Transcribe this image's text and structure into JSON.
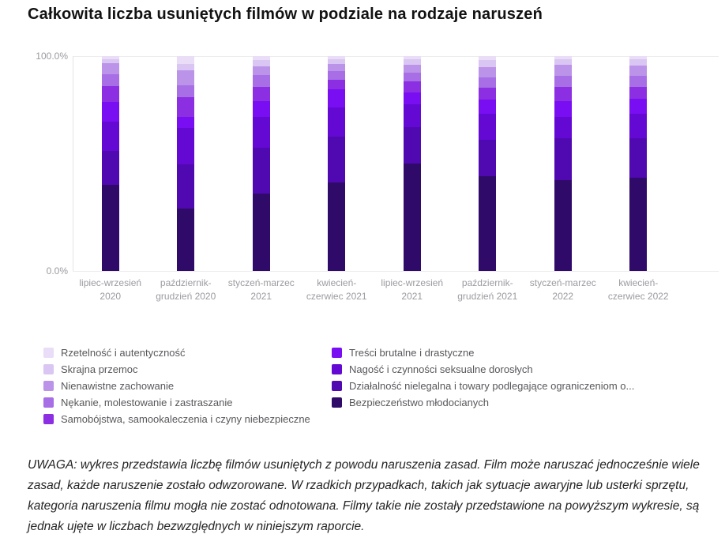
{
  "title": "Całkowita liczba usuniętych filmów w podziale na rodzaje naruszeń",
  "footnote": "UWAGA: wykres przedstawia liczbę filmów usuniętych z powodu naruszenia zasad. Film może naruszać jednocześnie wiele zasad, każde naruszenie zostało odwzorowane. W rzadkich przypadkach, takich jak sytuacje awaryjne lub usterki sprzętu, kategoria naruszenia filmu mogła nie zostać odnotowana. Filmy takie nie zostały przedstawione na powyższym wykresie, są jednak ujęte w liczbach bezwzględnych w niniejszym raporcie.",
  "chart_data": {
    "type": "bar",
    "subtype": "stacked-100-percent",
    "title": "Całkowita liczba usuniętych filmów w podziale na rodzaje naruszeń",
    "y_axis": {
      "max_label": "100.0%",
      "min_label": "0.0%",
      "range": [
        0,
        100
      ],
      "grid": "top-and-bottom-only"
    },
    "legend_position": "bottom-two-columns",
    "categories": [
      "lipiec-wrzesień 2020",
      "październik-grudzień 2020",
      "styczeń-marzec 2021",
      "kwiecień-czerwiec 2021",
      "lipiec-wrzesień 2021",
      "październik-grudzień 2021",
      "styczeń-marzec 2022",
      "kwiecień-czerwiec 2022"
    ],
    "category_lines": [
      [
        "lipiec-wrzesień",
        "2020"
      ],
      [
        "październik-",
        "grudzień 2020"
      ],
      [
        "styczeń-marzec",
        "2021"
      ],
      [
        "kwiecień-",
        "czerwiec 2021"
      ],
      [
        "lipiec-wrzesień",
        "2021"
      ],
      [
        "październik-",
        "grudzień 2021"
      ],
      [
        "styczeń-marzec",
        "2022"
      ],
      [
        "kwiecień-",
        "czerwiec 2022"
      ]
    ],
    "stack_order_note": "series listed top-of-bar to bottom-of-bar; values are percent of total per quarter",
    "series": [
      {
        "name": "Rzetelność i autentyczność",
        "color": "#e9ddf8",
        "values": [
          1.5,
          3.5,
          2.0,
          1.5,
          1.5,
          2.0,
          1.5,
          1.5
        ]
      },
      {
        "name": "Skrajna przemoc",
        "color": "#d9c6f2",
        "values": [
          1.7,
          3.0,
          2.6,
          2.0,
          2.4,
          3.0,
          2.4,
          3.0
        ]
      },
      {
        "name": "Nienawistne zachowanie",
        "color": "#bb93e8",
        "values": [
          5.3,
          7.0,
          4.4,
          3.5,
          3.8,
          4.8,
          5.4,
          4.8
        ]
      },
      {
        "name": "Nękanie, molestowanie i zastraszanie",
        "color": "#a76ee6",
        "values": [
          5.5,
          5.5,
          5.2,
          4.0,
          4.2,
          5.0,
          5.0,
          5.0
        ]
      },
      {
        "name": "Samobójstwa, samookaleczenia i czyny niebezpieczne",
        "color": "#8c2fe2",
        "values": [
          7.5,
          9.5,
          6.8,
          4.5,
          5.0,
          5.5,
          6.6,
          5.5
        ]
      },
      {
        "name": "Treści brutalne i drastyczne",
        "color": "#7a0ef2",
        "values": [
          9.0,
          5.0,
          7.5,
          8.5,
          5.7,
          6.7,
          7.6,
          7.0
        ]
      },
      {
        "name": "Nagość i czynności seksualne dorosłych",
        "color": "#6408d4",
        "values": [
          13.5,
          17.0,
          14.0,
          13.5,
          10.4,
          12.0,
          9.8,
          11.5
        ]
      },
      {
        "name": "Działalność nielegalna i towary podlegające ograniczeniom o...",
        "color": "#5008b0",
        "values": [
          16.0,
          20.5,
          21.5,
          21.5,
          17.0,
          17.0,
          19.5,
          18.2
        ]
      },
      {
        "name": "Bezpieczeństwo młodocianych",
        "color": "#300a69",
        "values": [
          40.0,
          29.0,
          36.0,
          41.0,
          50.0,
          44.0,
          42.2,
          43.5
        ]
      }
    ],
    "legend_columns": {
      "left_series_indexes": [
        0,
        1,
        2,
        3,
        4
      ],
      "right_series_indexes": [
        5,
        6,
        7,
        8
      ]
    }
  }
}
